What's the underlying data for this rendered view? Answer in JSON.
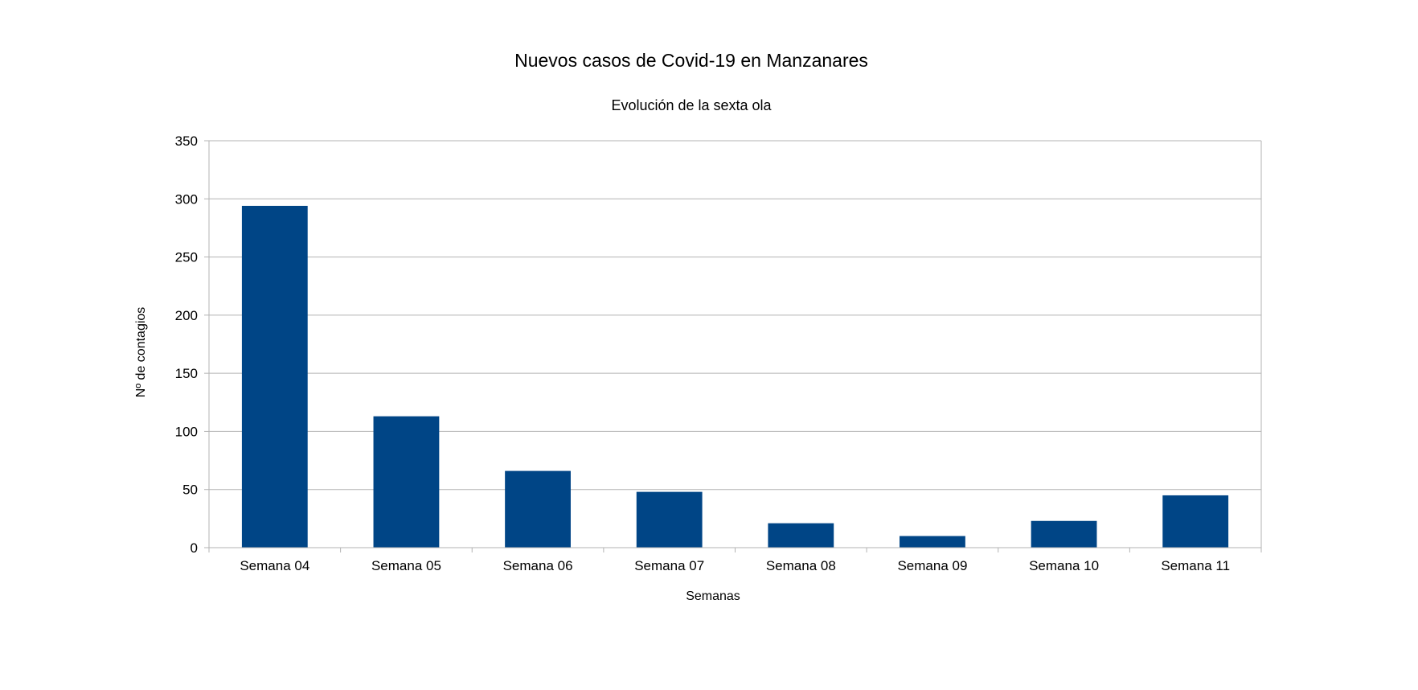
{
  "chart_data": {
    "type": "bar",
    "title": "Nuevos casos de Covid-19 en Manzanares",
    "subtitle": "Evolución de la sexta ola",
    "xlabel": "Semanas",
    "ylabel": "Nº de contagios",
    "categories": [
      "Semana 04",
      "Semana 05",
      "Semana 06",
      "Semana 07",
      "Semana 08",
      "Semana 09",
      "Semana 10",
      "Semana 11"
    ],
    "values": [
      294,
      113,
      66,
      48,
      21,
      10,
      23,
      45
    ],
    "ylim": [
      0,
      350
    ],
    "yticks": [
      0,
      50,
      100,
      150,
      200,
      250,
      300,
      350
    ],
    "grid": true,
    "legend": "none",
    "colors": {
      "bar": "#004586",
      "grid": "#b3b3b3",
      "axis": "#b3b3b3"
    }
  }
}
